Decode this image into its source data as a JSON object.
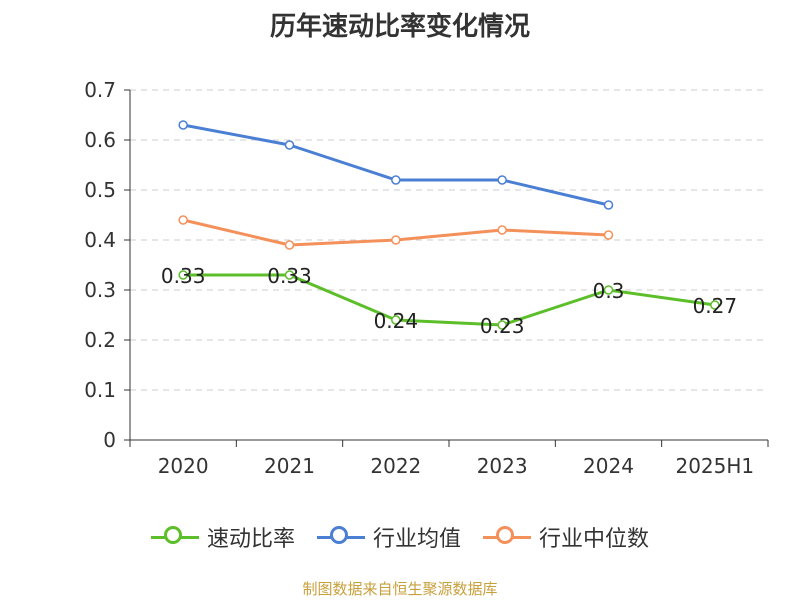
{
  "header": {
    "title": "历年速动比率变化情况"
  },
  "source": "制图数据来自恒生聚源数据库",
  "chart_data": {
    "type": "line",
    "categories": [
      "2020",
      "2021",
      "2022",
      "2023",
      "2024",
      "2025H1"
    ],
    "ylim": [
      0,
      0.7
    ],
    "yticks": [
      "0",
      "0.1",
      "0.2",
      "0.3",
      "0.4",
      "0.5",
      "0.6",
      "0.7"
    ],
    "grid": true,
    "legend_position": "bottom",
    "series": [
      {
        "name": "速动比率",
        "color": "#5cbf2a",
        "values": [
          0.33,
          0.33,
          0.24,
          0.23,
          0.3,
          0.27
        ],
        "labels": [
          "0.33",
          "0.33",
          "0.24",
          "0.23",
          "0.3",
          "0.27"
        ],
        "show_labels": true
      },
      {
        "name": "行业均值",
        "color": "#4a7fd4",
        "values": [
          0.63,
          0.59,
          0.52,
          0.52,
          0.47,
          null
        ],
        "show_labels": false
      },
      {
        "name": "行业中位数",
        "color": "#f4905a",
        "values": [
          0.44,
          0.39,
          0.4,
          0.42,
          0.41,
          null
        ],
        "show_labels": false
      }
    ]
  }
}
